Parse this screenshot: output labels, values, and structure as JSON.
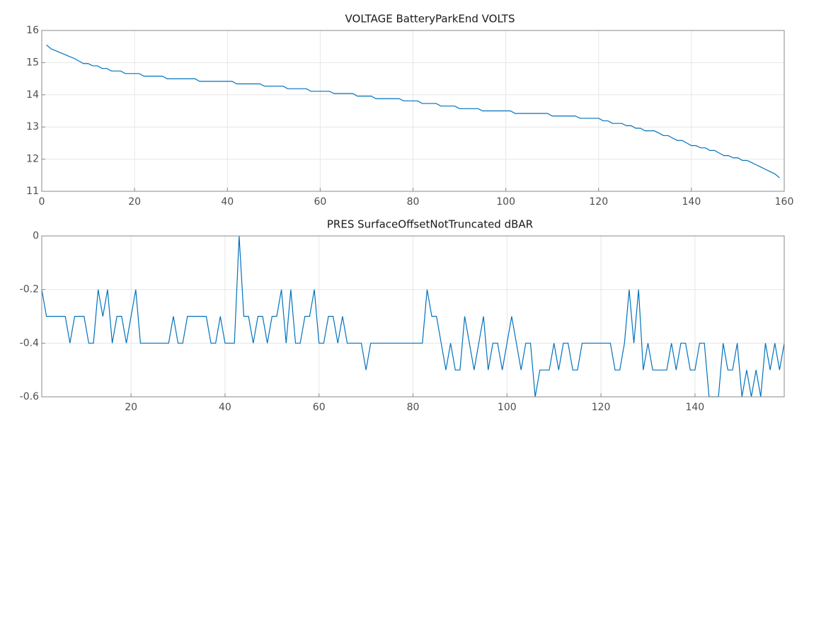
{
  "chart_data": [
    {
      "type": "line",
      "title": "VOLTAGE BatteryParkEnd VOLTS",
      "grid": true,
      "xlim": [
        0,
        160
      ],
      "xticks": [
        0,
        20,
        40,
        60,
        80,
        100,
        120,
        140,
        160
      ],
      "ylim": [
        11,
        16
      ],
      "yticks": [
        11,
        12,
        13,
        14,
        15,
        16
      ],
      "x": [
        1,
        2,
        3,
        4,
        5,
        6,
        7,
        8,
        9,
        10,
        11,
        12,
        13,
        14,
        15,
        16,
        17,
        18,
        19,
        20,
        21,
        22,
        23,
        24,
        25,
        26,
        27,
        28,
        29,
        30,
        31,
        32,
        33,
        34,
        35,
        36,
        37,
        38,
        39,
        40,
        41,
        42,
        43,
        44,
        45,
        46,
        47,
        48,
        49,
        50,
        51,
        52,
        53,
        54,
        55,
        56,
        57,
        58,
        59,
        60,
        61,
        62,
        63,
        64,
        65,
        66,
        67,
        68,
        69,
        70,
        71,
        72,
        73,
        74,
        75,
        76,
        77,
        78,
        79,
        80,
        81,
        82,
        83,
        84,
        85,
        86,
        87,
        88,
        89,
        90,
        91,
        92,
        93,
        94,
        95,
        96,
        97,
        98,
        99,
        100,
        101,
        102,
        103,
        104,
        105,
        106,
        107,
        108,
        109,
        110,
        111,
        112,
        113,
        114,
        115,
        116,
        117,
        118,
        119,
        120,
        121,
        122,
        123,
        124,
        125,
        126,
        127,
        128,
        129,
        130,
        131,
        132,
        133,
        134,
        135,
        136,
        137,
        138,
        139,
        140,
        141,
        142,
        143,
        144,
        145,
        146,
        147,
        148,
        149,
        150,
        151,
        152,
        153,
        154,
        155,
        156,
        157,
        158,
        159
      ],
      "series": [
        {
          "name": "VOLTAGE",
          "color": "#0072bd",
          "values": [
            15.55,
            15.43,
            15.37,
            15.31,
            15.25,
            15.19,
            15.13,
            15.05,
            14.97,
            14.97,
            14.9,
            14.9,
            14.82,
            14.82,
            14.74,
            14.74,
            14.74,
            14.66,
            14.66,
            14.66,
            14.66,
            14.58,
            14.58,
            14.58,
            14.58,
            14.58,
            14.5,
            14.5,
            14.5,
            14.5,
            14.5,
            14.5,
            14.5,
            14.42,
            14.42,
            14.42,
            14.42,
            14.42,
            14.42,
            14.42,
            14.42,
            14.34,
            14.34,
            14.34,
            14.34,
            14.34,
            14.34,
            14.27,
            14.27,
            14.27,
            14.27,
            14.27,
            14.19,
            14.19,
            14.19,
            14.19,
            14.19,
            14.11,
            14.11,
            14.11,
            14.11,
            14.11,
            14.04,
            14.04,
            14.04,
            14.04,
            14.04,
            13.96,
            13.96,
            13.96,
            13.96,
            13.88,
            13.88,
            13.88,
            13.88,
            13.88,
            13.88,
            13.81,
            13.81,
            13.81,
            13.81,
            13.73,
            13.73,
            13.73,
            13.73,
            13.65,
            13.65,
            13.65,
            13.65,
            13.57,
            13.57,
            13.57,
            13.57,
            13.57,
            13.5,
            13.5,
            13.5,
            13.5,
            13.5,
            13.5,
            13.5,
            13.42,
            13.42,
            13.42,
            13.42,
            13.42,
            13.42,
            13.42,
            13.42,
            13.34,
            13.34,
            13.34,
            13.34,
            13.34,
            13.34,
            13.27,
            13.27,
            13.27,
            13.27,
            13.27,
            13.19,
            13.19,
            13.11,
            13.11,
            13.11,
            13.04,
            13.04,
            12.96,
            12.96,
            12.88,
            12.88,
            12.88,
            12.81,
            12.73,
            12.73,
            12.65,
            12.58,
            12.58,
            12.5,
            12.42,
            12.42,
            12.35,
            12.35,
            12.27,
            12.27,
            12.19,
            12.11,
            12.11,
            12.04,
            12.04,
            11.96,
            11.96,
            11.89,
            11.82,
            11.75,
            11.68,
            11.61,
            11.54,
            11.42
          ]
        }
      ]
    },
    {
      "type": "line",
      "title": "PRES SurfaceOffsetNotTruncated dBAR",
      "grid": true,
      "xlim": [
        1,
        159
      ],
      "xticks": [
        20,
        40,
        60,
        80,
        100,
        120,
        140
      ],
      "ylim": [
        -0.6,
        0
      ],
      "yticks": [
        -0.6,
        -0.4,
        -0.2,
        0
      ],
      "x": [
        1,
        2,
        3,
        4,
        5,
        6,
        7,
        8,
        9,
        10,
        11,
        12,
        13,
        14,
        15,
        16,
        17,
        18,
        19,
        20,
        21,
        22,
        23,
        24,
        25,
        26,
        27,
        28,
        29,
        30,
        31,
        32,
        33,
        34,
        35,
        36,
        37,
        38,
        39,
        40,
        41,
        42,
        43,
        44,
        45,
        46,
        47,
        48,
        49,
        50,
        51,
        52,
        53,
        54,
        55,
        56,
        57,
        58,
        59,
        60,
        61,
        62,
        63,
        64,
        65,
        66,
        67,
        68,
        69,
        70,
        71,
        72,
        73,
        74,
        75,
        76,
        77,
        78,
        79,
        80,
        81,
        82,
        83,
        84,
        85,
        86,
        87,
        88,
        89,
        90,
        91,
        92,
        93,
        94,
        95,
        96,
        97,
        98,
        99,
        100,
        101,
        102,
        103,
        104,
        105,
        106,
        107,
        108,
        109,
        110,
        111,
        112,
        113,
        114,
        115,
        116,
        117,
        118,
        119,
        120,
        121,
        122,
        123,
        124,
        125,
        126,
        127,
        128,
        129,
        130,
        131,
        132,
        133,
        134,
        135,
        136,
        137,
        138,
        139,
        140,
        141,
        142,
        143,
        144,
        145,
        146,
        147,
        148,
        149,
        150,
        151,
        152,
        153,
        154,
        155,
        156,
        157,
        158,
        159
      ],
      "series": [
        {
          "name": "PRES",
          "color": "#0072bd",
          "values": [
            -0.2,
            -0.3,
            -0.3,
            -0.3,
            -0.3,
            -0.3,
            -0.4,
            -0.3,
            -0.3,
            -0.3,
            -0.4,
            -0.4,
            -0.2,
            -0.3,
            -0.2,
            -0.4,
            -0.3,
            -0.3,
            -0.4,
            -0.3,
            -0.2,
            -0.4,
            -0.4,
            -0.4,
            -0.4,
            -0.4,
            -0.4,
            -0.4,
            -0.3,
            -0.4,
            -0.4,
            -0.3,
            -0.3,
            -0.3,
            -0.3,
            -0.3,
            -0.4,
            -0.4,
            -0.3,
            -0.4,
            -0.4,
            -0.4,
            0,
            -0.3,
            -0.3,
            -0.4,
            -0.3,
            -0.3,
            -0.4,
            -0.3,
            -0.3,
            -0.2,
            -0.4,
            -0.2,
            -0.4,
            -0.4,
            -0.3,
            -0.3,
            -0.2,
            -0.4,
            -0.4,
            -0.3,
            -0.3,
            -0.4,
            -0.3,
            -0.4,
            -0.4,
            -0.4,
            -0.4,
            -0.5,
            -0.4,
            -0.4,
            -0.4,
            -0.4,
            -0.4,
            -0.4,
            -0.4,
            -0.4,
            -0.4,
            -0.4,
            -0.4,
            -0.4,
            -0.2,
            -0.3,
            -0.3,
            -0.4,
            -0.5,
            -0.4,
            -0.5,
            -0.5,
            -0.3,
            -0.4,
            -0.5,
            -0.4,
            -0.3,
            -0.5,
            -0.4,
            -0.4,
            -0.5,
            -0.4,
            -0.3,
            -0.4,
            -0.5,
            -0.4,
            -0.4,
            -0.6,
            -0.5,
            -0.5,
            -0.5,
            -0.4,
            -0.5,
            -0.4,
            -0.4,
            -0.5,
            -0.5,
            -0.4,
            -0.4,
            -0.4,
            -0.4,
            -0.4,
            -0.4,
            -0.4,
            -0.5,
            -0.5,
            -0.4,
            -0.2,
            -0.4,
            -0.2,
            -0.5,
            -0.4,
            -0.5,
            -0.5,
            -0.5,
            -0.5,
            -0.4,
            -0.5,
            -0.4,
            -0.4,
            -0.5,
            -0.5,
            -0.4,
            -0.4,
            -0.6,
            -0.6,
            -0.6,
            -0.4,
            -0.5,
            -0.5,
            -0.4,
            -0.6,
            -0.5,
            -0.6,
            -0.5,
            -0.6,
            -0.4,
            -0.5,
            -0.4,
            -0.5,
            -0.4
          ]
        }
      ]
    }
  ]
}
